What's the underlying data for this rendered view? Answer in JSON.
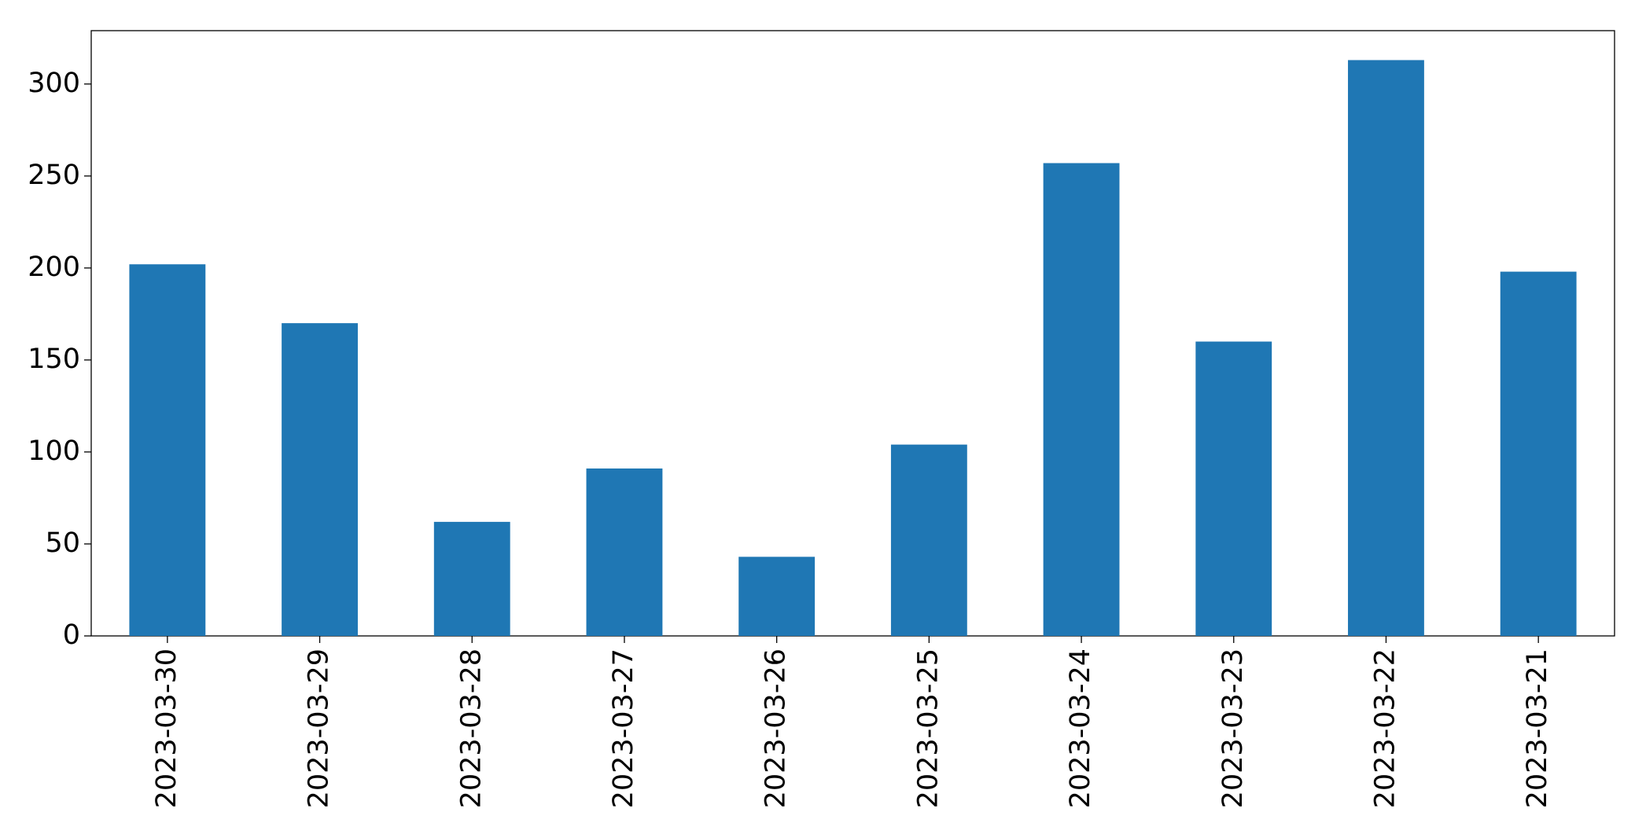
{
  "chart_data": {
    "type": "bar",
    "categories": [
      "2023-03-30",
      "2023-03-29",
      "2023-03-28",
      "2023-03-27",
      "2023-03-26",
      "2023-03-25",
      "2023-03-24",
      "2023-03-23",
      "2023-03-22",
      "2023-03-21"
    ],
    "values": [
      202,
      170,
      62,
      91,
      43,
      104,
      257,
      160,
      313,
      198
    ],
    "color": "#1f77b4",
    "ylim": [
      0,
      329
    ],
    "yticks": [
      0,
      50,
      100,
      150,
      200,
      250,
      300
    ],
    "grid": false
  }
}
